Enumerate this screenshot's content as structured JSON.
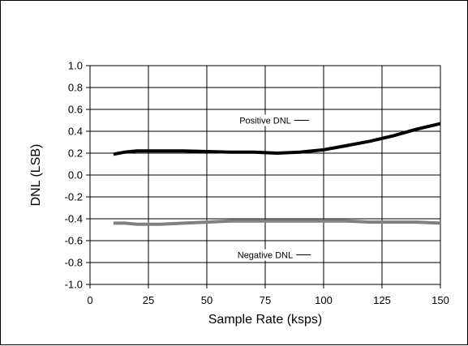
{
  "chart_data": {
    "type": "line",
    "xlabel": "Sample Rate (ksps)",
    "ylabel": "DNL (LSB)",
    "xlim": [
      0,
      150
    ],
    "ylim": [
      -1.0,
      1.0
    ],
    "xticks": [
      0,
      25,
      50,
      75,
      100,
      125,
      150
    ],
    "xtick_labels": [
      "0",
      "25",
      "50",
      "75",
      "100",
      "125",
      "150"
    ],
    "yticks": [
      -1.0,
      -0.8,
      -0.6,
      -0.4,
      -0.2,
      0.0,
      0.2,
      0.4,
      0.6,
      0.8,
      1.0
    ],
    "ytick_labels": [
      "-1.0",
      "-0.8",
      "-0.6",
      "-0.4",
      "-0.2",
      "0.0",
      "0.2",
      "0.4",
      "0.6",
      "0.8",
      "1.0"
    ],
    "grid": true,
    "series": [
      {
        "name": "Positive DNL",
        "color": "#000000",
        "x": [
          10,
          15,
          20,
          30,
          40,
          50,
          60,
          70,
          80,
          90,
          100,
          110,
          120,
          130,
          140,
          150
        ],
        "y": [
          0.19,
          0.21,
          0.22,
          0.22,
          0.22,
          0.215,
          0.21,
          0.21,
          0.2,
          0.21,
          0.23,
          0.27,
          0.31,
          0.36,
          0.42,
          0.47
        ]
      },
      {
        "name": "Negative DNL",
        "color": "#808080",
        "x": [
          10,
          15,
          20,
          30,
          40,
          50,
          60,
          70,
          80,
          90,
          100,
          110,
          120,
          130,
          140,
          150
        ],
        "y": [
          -0.44,
          -0.44,
          -0.45,
          -0.45,
          -0.44,
          -0.43,
          -0.42,
          -0.42,
          -0.42,
          -0.42,
          -0.42,
          -0.42,
          -0.43,
          -0.43,
          -0.43,
          -0.44
        ]
      }
    ],
    "annotations": [
      {
        "text": "Positive DNL",
        "series": 0,
        "x": 75,
        "y": 0.5
      },
      {
        "text": "Negative DNL",
        "series": 1,
        "x": 75,
        "y": -0.73
      }
    ]
  }
}
